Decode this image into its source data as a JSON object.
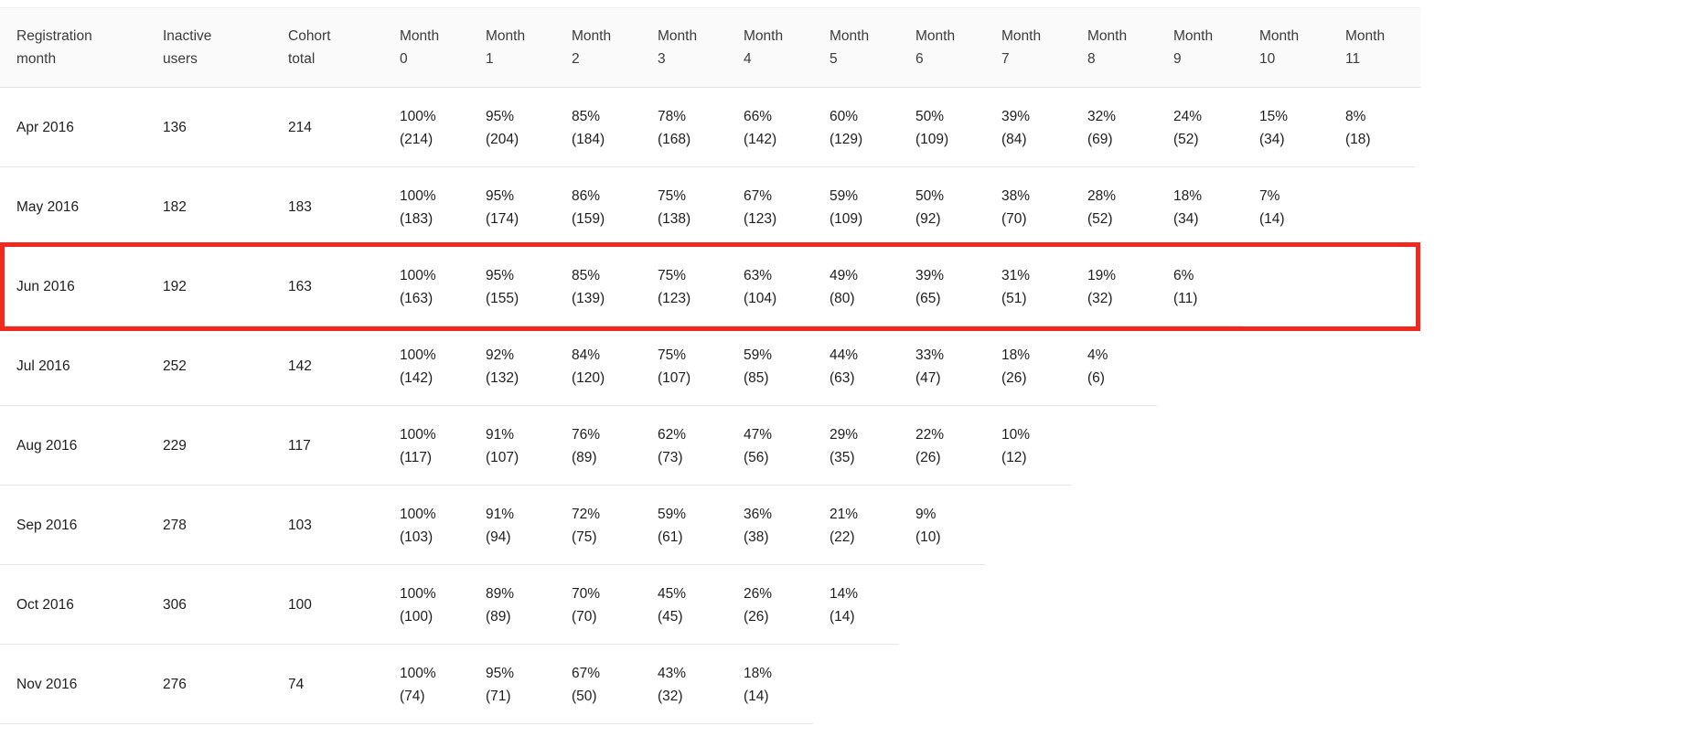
{
  "chart_data": {
    "type": "table",
    "columns": [
      "Registration month",
      "Inactive users",
      "Cohort total",
      "Month 0",
      "Month 1",
      "Month 2",
      "Month 3",
      "Month 4",
      "Month 5",
      "Month 6",
      "Month 7",
      "Month 8",
      "Month 9",
      "Month 10",
      "Month 11"
    ],
    "highlighted_row": "Jun 2016",
    "highlight_color": "#f0281d",
    "rows": [
      {
        "registration_month": "Apr 2016",
        "inactive_users": "136",
        "cohort_total": "214",
        "months": [
          {
            "pct": "100%",
            "count": "(214)"
          },
          {
            "pct": "95%",
            "count": "(204)"
          },
          {
            "pct": "85%",
            "count": "(184)"
          },
          {
            "pct": "78%",
            "count": "(168)"
          },
          {
            "pct": "66%",
            "count": "(142)"
          },
          {
            "pct": "60%",
            "count": "(129)"
          },
          {
            "pct": "50%",
            "count": "(109)"
          },
          {
            "pct": "39%",
            "count": "(84)"
          },
          {
            "pct": "32%",
            "count": "(69)"
          },
          {
            "pct": "24%",
            "count": "(52)"
          },
          {
            "pct": "15%",
            "count": "(34)"
          },
          {
            "pct": "8%",
            "count": "(18)"
          }
        ]
      },
      {
        "registration_month": "May 2016",
        "inactive_users": "182",
        "cohort_total": "183",
        "months": [
          {
            "pct": "100%",
            "count": "(183)"
          },
          {
            "pct": "95%",
            "count": "(174)"
          },
          {
            "pct": "86%",
            "count": "(159)"
          },
          {
            "pct": "75%",
            "count": "(138)"
          },
          {
            "pct": "67%",
            "count": "(123)"
          },
          {
            "pct": "59%",
            "count": "(109)"
          },
          {
            "pct": "50%",
            "count": "(92)"
          },
          {
            "pct": "38%",
            "count": "(70)"
          },
          {
            "pct": "28%",
            "count": "(52)"
          },
          {
            "pct": "18%",
            "count": "(34)"
          },
          {
            "pct": "7%",
            "count": "(14)"
          }
        ]
      },
      {
        "registration_month": "Jun 2016",
        "inactive_users": "192",
        "cohort_total": "163",
        "months": [
          {
            "pct": "100%",
            "count": "(163)"
          },
          {
            "pct": "95%",
            "count": "(155)"
          },
          {
            "pct": "85%",
            "count": "(139)"
          },
          {
            "pct": "75%",
            "count": "(123)"
          },
          {
            "pct": "63%",
            "count": "(104)"
          },
          {
            "pct": "49%",
            "count": "(80)"
          },
          {
            "pct": "39%",
            "count": "(65)"
          },
          {
            "pct": "31%",
            "count": "(51)"
          },
          {
            "pct": "19%",
            "count": "(32)"
          },
          {
            "pct": "6%",
            "count": "(11)"
          }
        ]
      },
      {
        "registration_month": "Jul 2016",
        "inactive_users": "252",
        "cohort_total": "142",
        "months": [
          {
            "pct": "100%",
            "count": "(142)"
          },
          {
            "pct": "92%",
            "count": "(132)"
          },
          {
            "pct": "84%",
            "count": "(120)"
          },
          {
            "pct": "75%",
            "count": "(107)"
          },
          {
            "pct": "59%",
            "count": "(85)"
          },
          {
            "pct": "44%",
            "count": "(63)"
          },
          {
            "pct": "33%",
            "count": "(47)"
          },
          {
            "pct": "18%",
            "count": "(26)"
          },
          {
            "pct": "4%",
            "count": "(6)"
          }
        ]
      },
      {
        "registration_month": "Aug 2016",
        "inactive_users": "229",
        "cohort_total": "117",
        "months": [
          {
            "pct": "100%",
            "count": "(117)"
          },
          {
            "pct": "91%",
            "count": "(107)"
          },
          {
            "pct": "76%",
            "count": "(89)"
          },
          {
            "pct": "62%",
            "count": "(73)"
          },
          {
            "pct": "47%",
            "count": "(56)"
          },
          {
            "pct": "29%",
            "count": "(35)"
          },
          {
            "pct": "22%",
            "count": "(26)"
          },
          {
            "pct": "10%",
            "count": "(12)"
          }
        ]
      },
      {
        "registration_month": "Sep 2016",
        "inactive_users": "278",
        "cohort_total": "103",
        "months": [
          {
            "pct": "100%",
            "count": "(103)"
          },
          {
            "pct": "91%",
            "count": "(94)"
          },
          {
            "pct": "72%",
            "count": "(75)"
          },
          {
            "pct": "59%",
            "count": "(61)"
          },
          {
            "pct": "36%",
            "count": "(38)"
          },
          {
            "pct": "21%",
            "count": "(22)"
          },
          {
            "pct": "9%",
            "count": "(10)"
          }
        ]
      },
      {
        "registration_month": "Oct 2016",
        "inactive_users": "306",
        "cohort_total": "100",
        "months": [
          {
            "pct": "100%",
            "count": "(100)"
          },
          {
            "pct": "89%",
            "count": "(89)"
          },
          {
            "pct": "70%",
            "count": "(70)"
          },
          {
            "pct": "45%",
            "count": "(45)"
          },
          {
            "pct": "26%",
            "count": "(26)"
          },
          {
            "pct": "14%",
            "count": "(14)"
          }
        ]
      },
      {
        "registration_month": "Nov 2016",
        "inactive_users": "276",
        "cohort_total": "74",
        "months": [
          {
            "pct": "100%",
            "count": "(74)"
          },
          {
            "pct": "95%",
            "count": "(71)"
          },
          {
            "pct": "67%",
            "count": "(50)"
          },
          {
            "pct": "43%",
            "count": "(32)"
          },
          {
            "pct": "18%",
            "count": "(14)"
          }
        ]
      }
    ]
  }
}
